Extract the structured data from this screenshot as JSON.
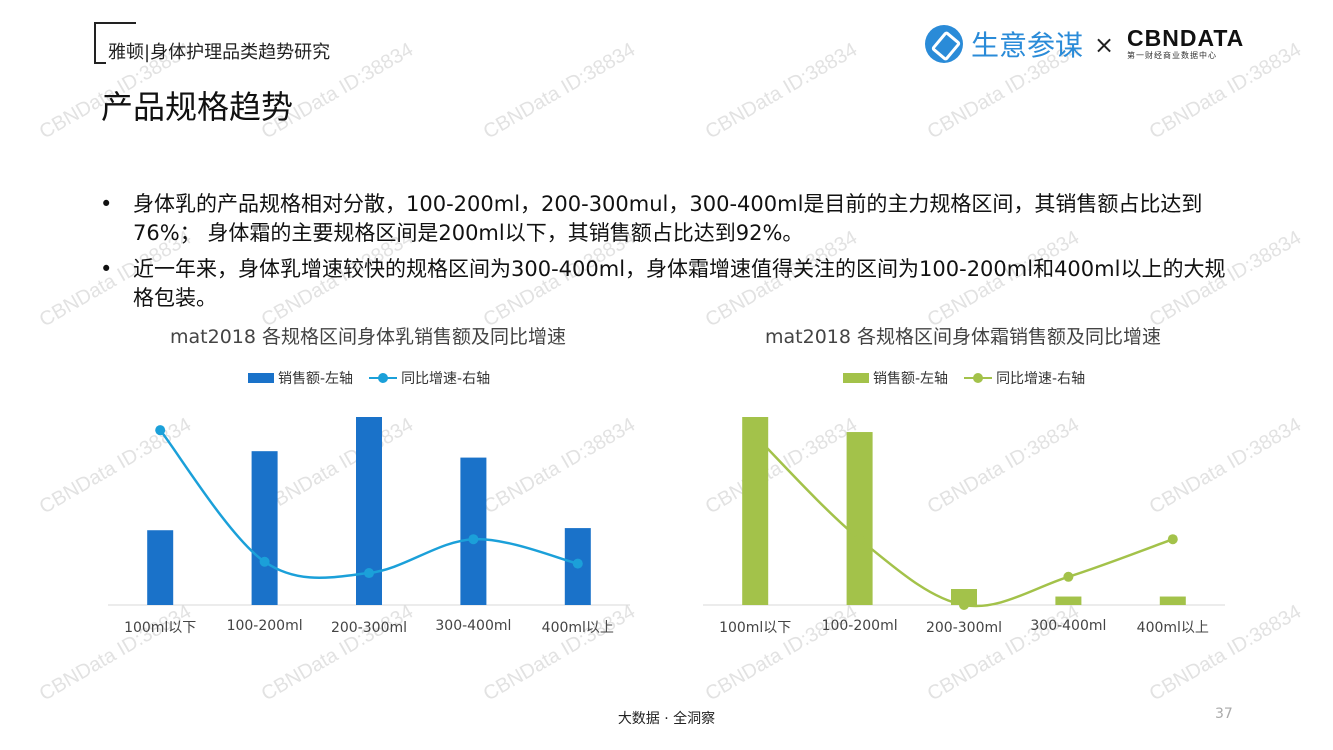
{
  "header": {
    "title": "雅顿|身体护理品类趋势研究"
  },
  "page_title": "产品规格趋势",
  "logos": {
    "shengyi": "生意参谋",
    "times": "×",
    "cbn_name": "CBNDATA",
    "cbn_sub": "第一财经商业数据中心"
  },
  "bullets": [
    "身体乳的产品规格相对分散，100-200ml，200-300mul，300-400ml是目前的主力规格区间，其销售额占比达到76%； 身体霜的主要规格区间是200ml以下，其销售额占比达到92%。",
    "近一年来，身体乳增速较快的规格区间为300-400ml，身体霜增速值得关注的区间为100-200ml和400ml以上的大规格包装。"
  ],
  "footer": "大数据 · 全洞察",
  "page_number": "37",
  "watermark_text": "CBNData ID:38834",
  "colors": {
    "lotion": "#1a72c9",
    "lotion_line": "#1ba0d9",
    "cream": "#a3c24a",
    "cream_line": "#a3c24a"
  },
  "chart_data": [
    {
      "type": "bar",
      "title": "mat2018 各规格区间身体乳销售额及同比增速",
      "categories": [
        "100ml以下",
        "100-200ml",
        "200-300ml",
        "300-400ml",
        "400ml以上"
      ],
      "series": [
        {
          "name": "销售额-左轴",
          "type": "bar",
          "axis": "left",
          "values": [
            35,
            72,
            88,
            69,
            36
          ]
        },
        {
          "name": "同比增速-右轴",
          "type": "line",
          "axis": "right",
          "values": [
            93,
            23,
            17,
            35,
            22
          ]
        }
      ],
      "legend_position": "top",
      "grid": false
    },
    {
      "type": "bar",
      "title": "mat2018 各规格区间身体霜销售额及同比增速",
      "categories": [
        "100ml以下",
        "100-200ml",
        "200-300ml",
        "300-400ml",
        "400ml以上"
      ],
      "series": [
        {
          "name": "销售额-左轴",
          "type": "bar",
          "axis": "left",
          "values": [
            100,
            92,
            8.5,
            4.5,
            4.5
          ]
        },
        {
          "name": "同比增速-右轴",
          "type": "line",
          "axis": "right",
          "values": [
            90,
            35,
            0,
            15,
            35
          ]
        }
      ],
      "legend_position": "top",
      "grid": false
    }
  ]
}
